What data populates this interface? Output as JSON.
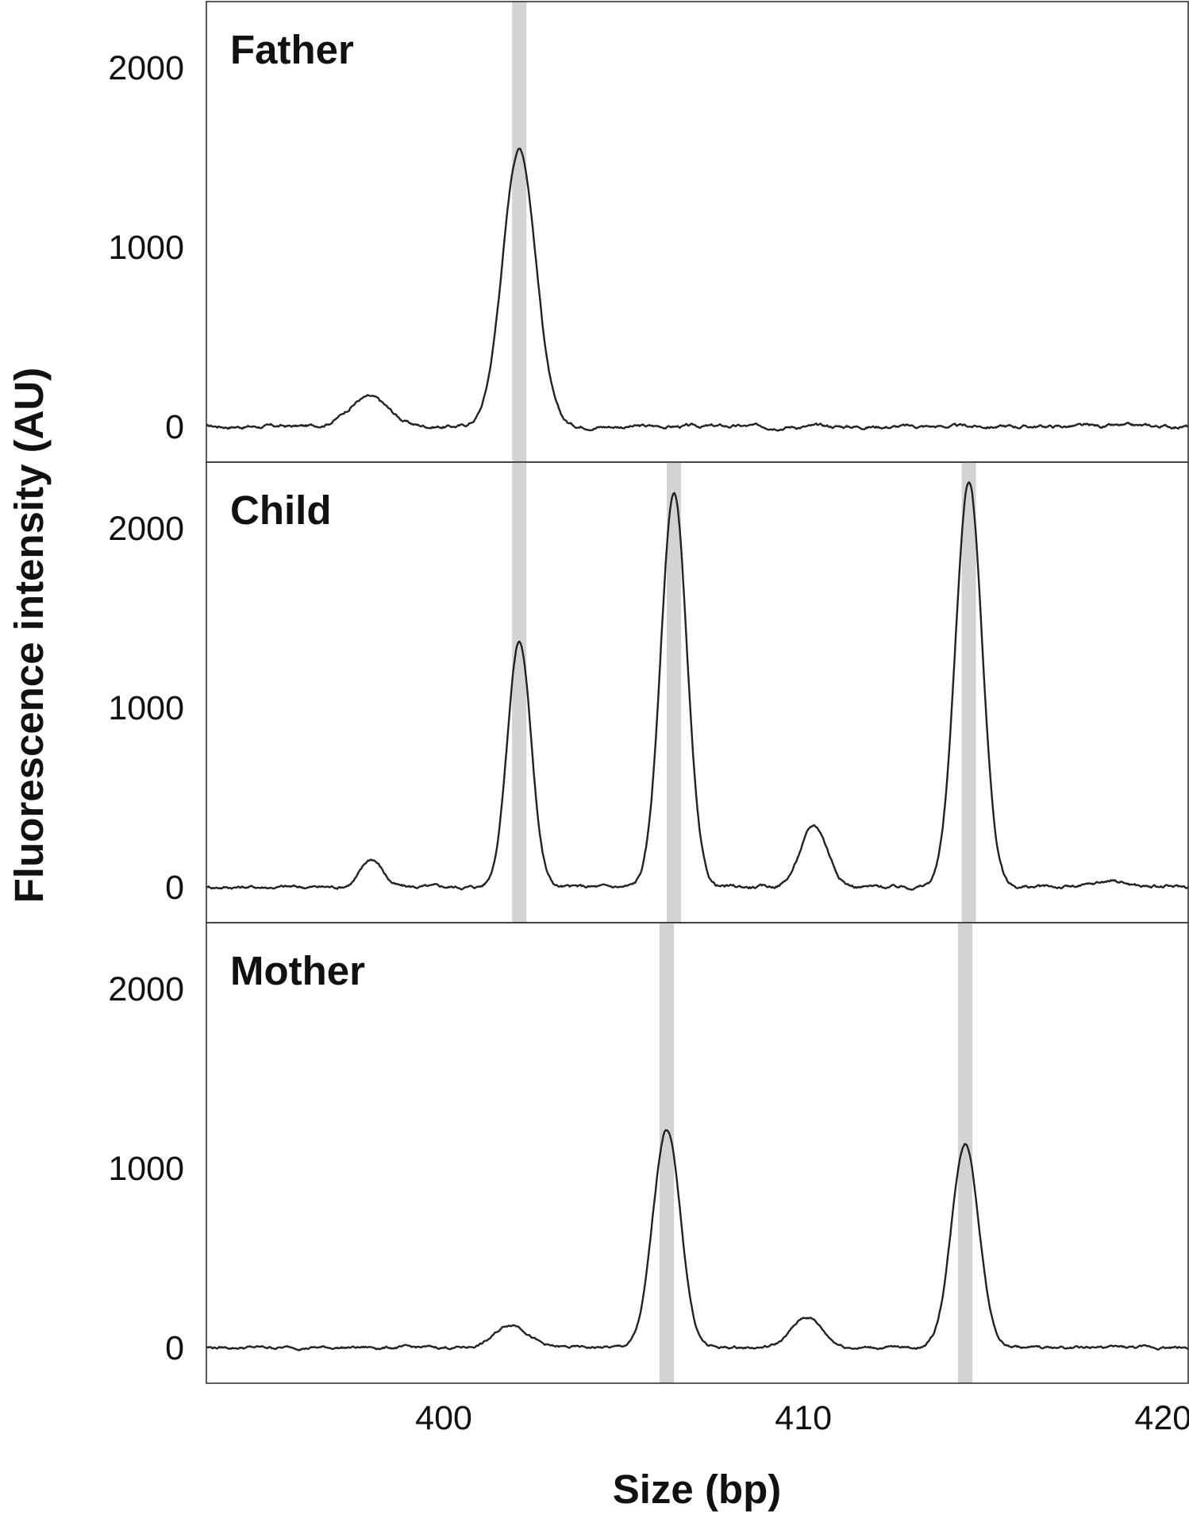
{
  "chart_data": {
    "type": "line",
    "xlabel": "Size (bp)",
    "ylabel": "Fluorescence intensity (AU)",
    "xlim": [
      393.4,
      420.7
    ],
    "x_ticks": [
      400,
      410,
      420
    ],
    "ylim": [
      -200,
      2350
    ],
    "y_ticks": [
      0,
      1000,
      2000
    ],
    "highlight_band_width_bp": 0.4,
    "highlight_color": "#d3d3d3",
    "line_color": "#222222",
    "grid": false,
    "panels": [
      {
        "title": "Father",
        "highlight_centers": [
          402.1
        ],
        "peaks": [
          {
            "x": 397.9,
            "height": 165,
            "sigma": 0.55
          },
          {
            "x": 402.1,
            "height": 1550,
            "sigma": 0.46
          }
        ],
        "baseline_noise": 12
      },
      {
        "title": "Child",
        "highlight_centers": [
          402.1,
          406.4,
          414.6
        ],
        "peaks": [
          {
            "x": 398.0,
            "height": 155,
            "sigma": 0.3
          },
          {
            "x": 402.1,
            "height": 1370,
            "sigma": 0.33
          },
          {
            "x": 406.4,
            "height": 2200,
            "sigma": 0.36
          },
          {
            "x": 410.3,
            "height": 340,
            "sigma": 0.38
          },
          {
            "x": 414.6,
            "height": 2260,
            "sigma": 0.37
          },
          {
            "x": 418.6,
            "height": 35,
            "sigma": 0.4
          }
        ],
        "baseline_noise": 12
      },
      {
        "title": "Mother",
        "highlight_centers": [
          406.2,
          414.5
        ],
        "peaks": [
          {
            "x": 401.9,
            "height": 130,
            "sigma": 0.45
          },
          {
            "x": 406.2,
            "height": 1220,
            "sigma": 0.38
          },
          {
            "x": 410.1,
            "height": 170,
            "sigma": 0.42
          },
          {
            "x": 414.5,
            "height": 1140,
            "sigma": 0.38
          }
        ],
        "baseline_noise": 10
      }
    ]
  }
}
